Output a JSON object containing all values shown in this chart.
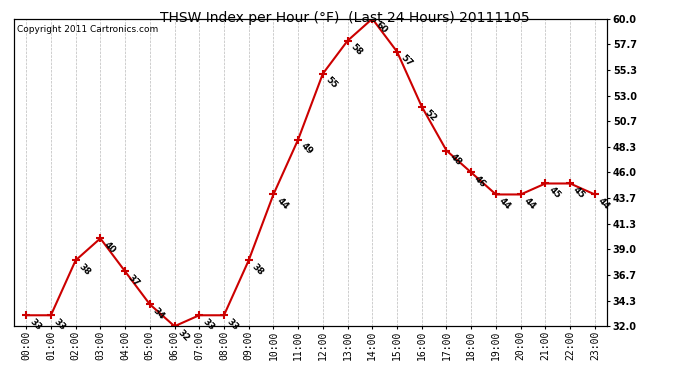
{
  "title": "THSW Index per Hour (°F)  (Last 24 Hours) 20111105",
  "copyright": "Copyright 2011 Cartronics.com",
  "hours": [
    "00:00",
    "01:00",
    "02:00",
    "03:00",
    "04:00",
    "05:00",
    "06:00",
    "07:00",
    "08:00",
    "09:00",
    "10:00",
    "11:00",
    "12:00",
    "13:00",
    "14:00",
    "15:00",
    "16:00",
    "17:00",
    "18:00",
    "19:00",
    "20:00",
    "21:00",
    "22:00",
    "23:00"
  ],
  "values": [
    33,
    33,
    38,
    40,
    37,
    34,
    32,
    33,
    33,
    38,
    44,
    49,
    55,
    58,
    60,
    57,
    52,
    48,
    46,
    44,
    44,
    45,
    45,
    44
  ],
  "ylim_min": 32.0,
  "ylim_max": 60.0,
  "yticks": [
    32.0,
    34.3,
    36.7,
    39.0,
    41.3,
    43.7,
    46.0,
    48.3,
    50.7,
    53.0,
    55.3,
    57.7,
    60.0
  ],
  "line_color": "#cc0000",
  "marker_color": "#cc0000",
  "bg_color": "#ffffff",
  "grid_color": "#bbbbbb",
  "text_color": "#000000",
  "title_fontsize": 10,
  "label_fontsize": 6.5,
  "tick_fontsize": 7,
  "copyright_fontsize": 6.5
}
